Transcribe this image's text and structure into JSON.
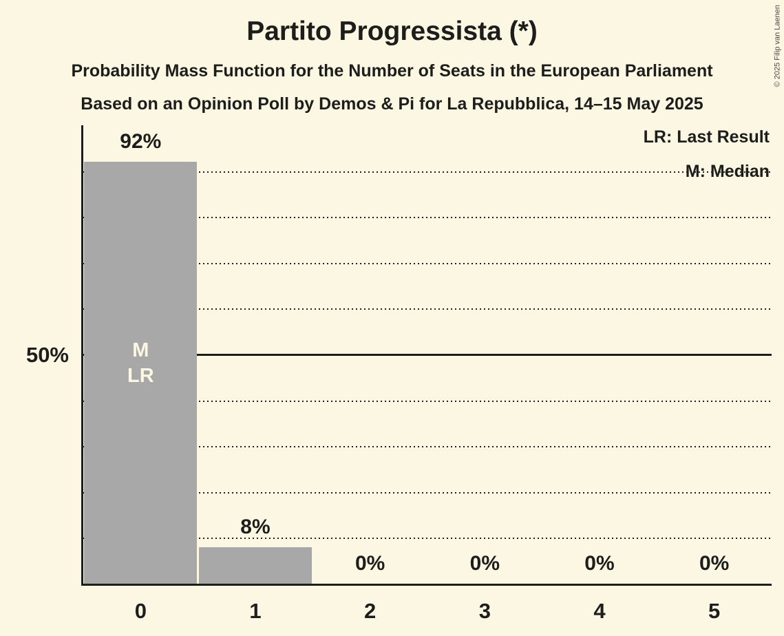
{
  "title": "Partito Progressista (*)",
  "subtitle1": "Probability Mass Function for the Number of Seats in the European Parliament",
  "subtitle2": "Based on an Opinion Poll by Demos & Pi for La Repubblica, 14–15 May 2025",
  "copyright": "© 2025 Filip van Laenen",
  "legend": {
    "last_result": "LR: Last Result",
    "median": "M: Median"
  },
  "y_axis": {
    "tick_label": "50%"
  },
  "colors": {
    "background": "#FBF7E3",
    "bar": "#A8A8A8",
    "text": "#1D1D1B",
    "in_bar_text": "#FBF7E3"
  },
  "chart_data": {
    "type": "bar",
    "categories": [
      "0",
      "1",
      "2",
      "3",
      "4",
      "5"
    ],
    "values": [
      92,
      8,
      0,
      0,
      0,
      0
    ],
    "value_labels": [
      "92%",
      "8%",
      "0%",
      "0%",
      "0%",
      "0%"
    ],
    "in_bar_labels": [
      [
        "M",
        "LR"
      ],
      [],
      [],
      [],
      [],
      []
    ],
    "title": "Partito Progressista (*)",
    "xlabel": "",
    "ylabel": "",
    "ylim": [
      0,
      100
    ],
    "y_tick": {
      "pct": 50,
      "label": "50%"
    },
    "dotted_gridlines_pct": [
      10,
      20,
      30,
      40,
      60,
      70,
      80,
      90
    ],
    "solid_gridline_pct": 50,
    "grid": "horizontal-dotted",
    "legend_entries": [
      "LR: Last Result",
      "M: Median"
    ],
    "legend_position": "top-right",
    "median_category": "0",
    "last_result_category": "0"
  }
}
